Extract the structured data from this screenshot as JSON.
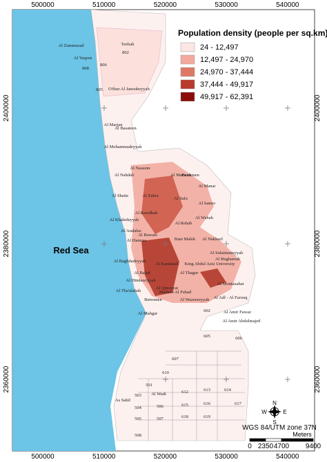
{
  "map": {
    "legend": {
      "title": "Population density (people per sq.km)",
      "classes": [
        {
          "label": "24 - 12,497",
          "color": "#fce6e3"
        },
        {
          "label": "12,497 - 24,970",
          "color": "#f3a99e"
        },
        {
          "label": "24,970 - 37,444",
          "color": "#de7766"
        },
        {
          "label": "37,444 - 49,917",
          "color": "#b93b2b"
        },
        {
          "label": "49,917 - 62,391",
          "color": "#8b0a0a"
        }
      ]
    },
    "x_ticks": [
      500000,
      510000,
      520000,
      530000,
      540000
    ],
    "y_ticks": [
      2400000,
      2380000,
      2360000
    ],
    "sea_label": "Red Sea",
    "scale_bar": {
      "ticks": [
        0,
        2350,
        4700,
        9400
      ],
      "unit": "Meters"
    },
    "projection": "WGS 84/UTM zone 37N",
    "compass": {
      "n": "N",
      "e": "E",
      "s": "S",
      "w": "W"
    },
    "districts": [
      "Al Zummurad",
      "Teebah",
      "Al Yaqout",
      "802",
      "806",
      "808",
      "805",
      "O'thur Al Janoubeyyah",
      "Al Marjan",
      "Al Basateen",
      "Al Mohammadeyyah",
      "Buraimen",
      "Al Naseem",
      "Al Nahdah",
      "Al Marwah",
      "Al Manar",
      "Al Shatie",
      "Al Zahra",
      "Al Safa",
      "Al Samer",
      "Al Rawdhah",
      "Al Khaledeyyah",
      "Al Wahah",
      "Al Rehab",
      "Al Andalus",
      "Al Ruwais",
      "Bani Malek",
      "Al Nakheel",
      "Al Hamraa",
      "Al Sulaimaneyyah",
      "Al Rughamah",
      "Al Baghdadeyyah",
      "Al Kandarah",
      "King Abdul Aziz University",
      "Al Balad",
      "Al Thagur",
      "Al Montazahat",
      "Al Hindawiyyah",
      "Al Qurayyat",
      "Al Tha'alabah",
      "Madaen Al Fahad",
      "Al Adl - Al Farouq",
      "Betromen",
      "Al Wazeereyyah",
      "Al Amir Fawaz",
      "Al Mahgar",
      "602",
      "Al Amir Abdulmajed",
      "605",
      "606",
      "607",
      "610",
      "501",
      "503",
      "Al Wadi",
      "612",
      "613",
      "614",
      "As Sahil",
      "504",
      "505",
      "506",
      "507",
      "615",
      "616",
      "617",
      "618",
      "619",
      "508"
    ]
  }
}
